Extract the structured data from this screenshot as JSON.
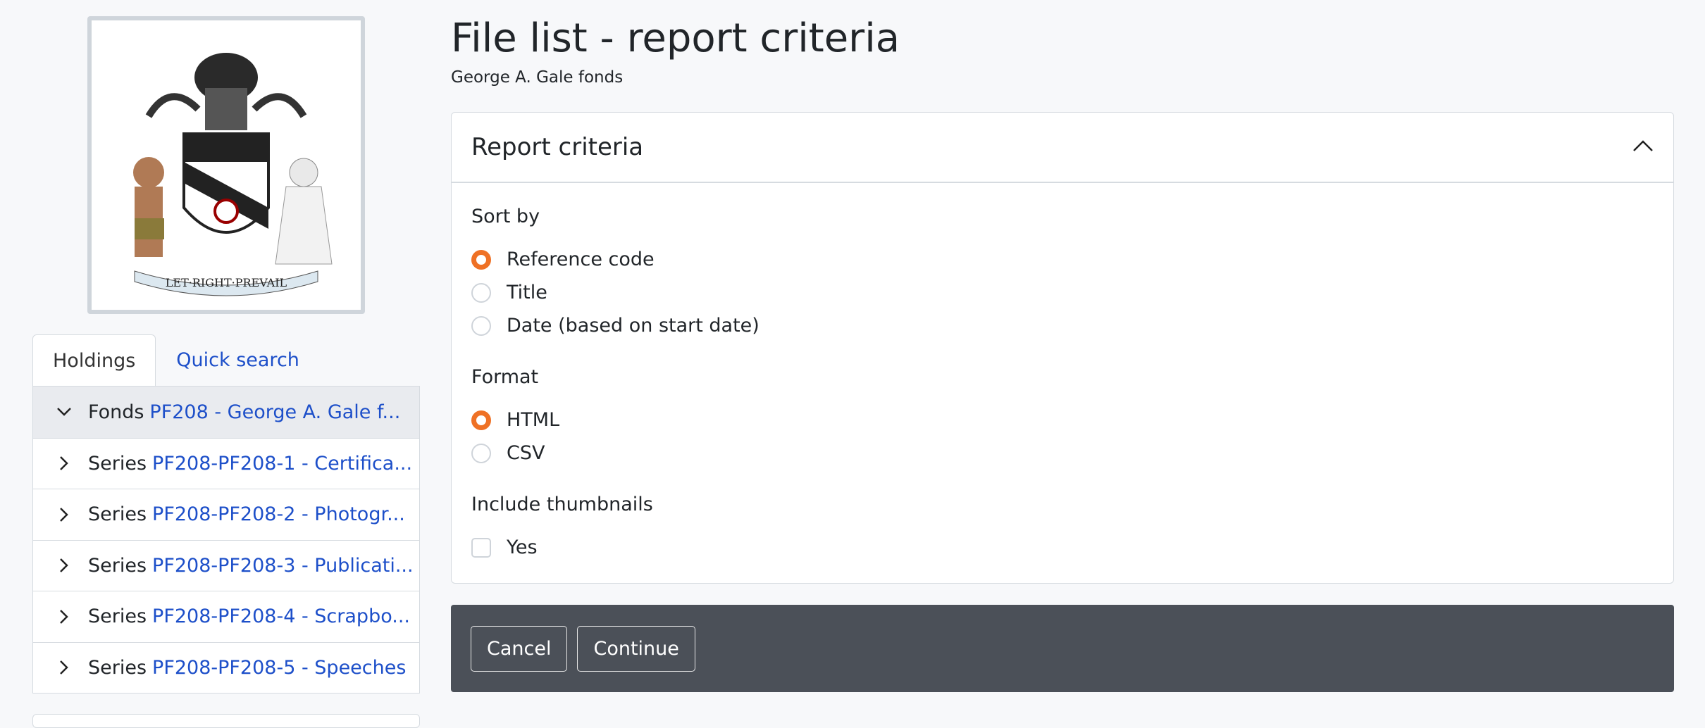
{
  "logo": {
    "motto": "LET RIGHT PREVAIL"
  },
  "sidebar": {
    "tabs": [
      {
        "label": "Holdings",
        "active": true
      },
      {
        "label": "Quick search",
        "active": false
      }
    ],
    "tree": [
      {
        "level": "Fonds",
        "link": "PF208 - George A. Gale f...",
        "expanded": true
      },
      {
        "level": "Series",
        "link": "PF208-PF208-1 - Certifica...",
        "expanded": false
      },
      {
        "level": "Series",
        "link": "PF208-PF208-2 - Photogr...",
        "expanded": false
      },
      {
        "level": "Series",
        "link": "PF208-PF208-3 - Publicati...",
        "expanded": false
      },
      {
        "level": "Series",
        "link": "PF208-PF208-4 - Scrapbo...",
        "expanded": false
      },
      {
        "level": "Series",
        "link": "PF208-PF208-5 - Speeches",
        "expanded": false
      }
    ]
  },
  "header": {
    "title": "File list - report criteria",
    "subtitle": "George A. Gale fonds"
  },
  "card": {
    "title": "Report criteria",
    "sort_by": {
      "label": "Sort by",
      "options": [
        "Reference code",
        "Title",
        "Date (based on start date)"
      ],
      "selected": "Reference code"
    },
    "format": {
      "label": "Format",
      "options": [
        "HTML",
        "CSV"
      ],
      "selected": "HTML"
    },
    "thumbnails": {
      "label": "Include thumbnails",
      "option": "Yes",
      "checked": false
    }
  },
  "actions": {
    "cancel": "Cancel",
    "continue": "Continue"
  },
  "colors": {
    "accent": "#ef7125",
    "link": "#1d4fc9",
    "action_bar": "#4b5058"
  }
}
